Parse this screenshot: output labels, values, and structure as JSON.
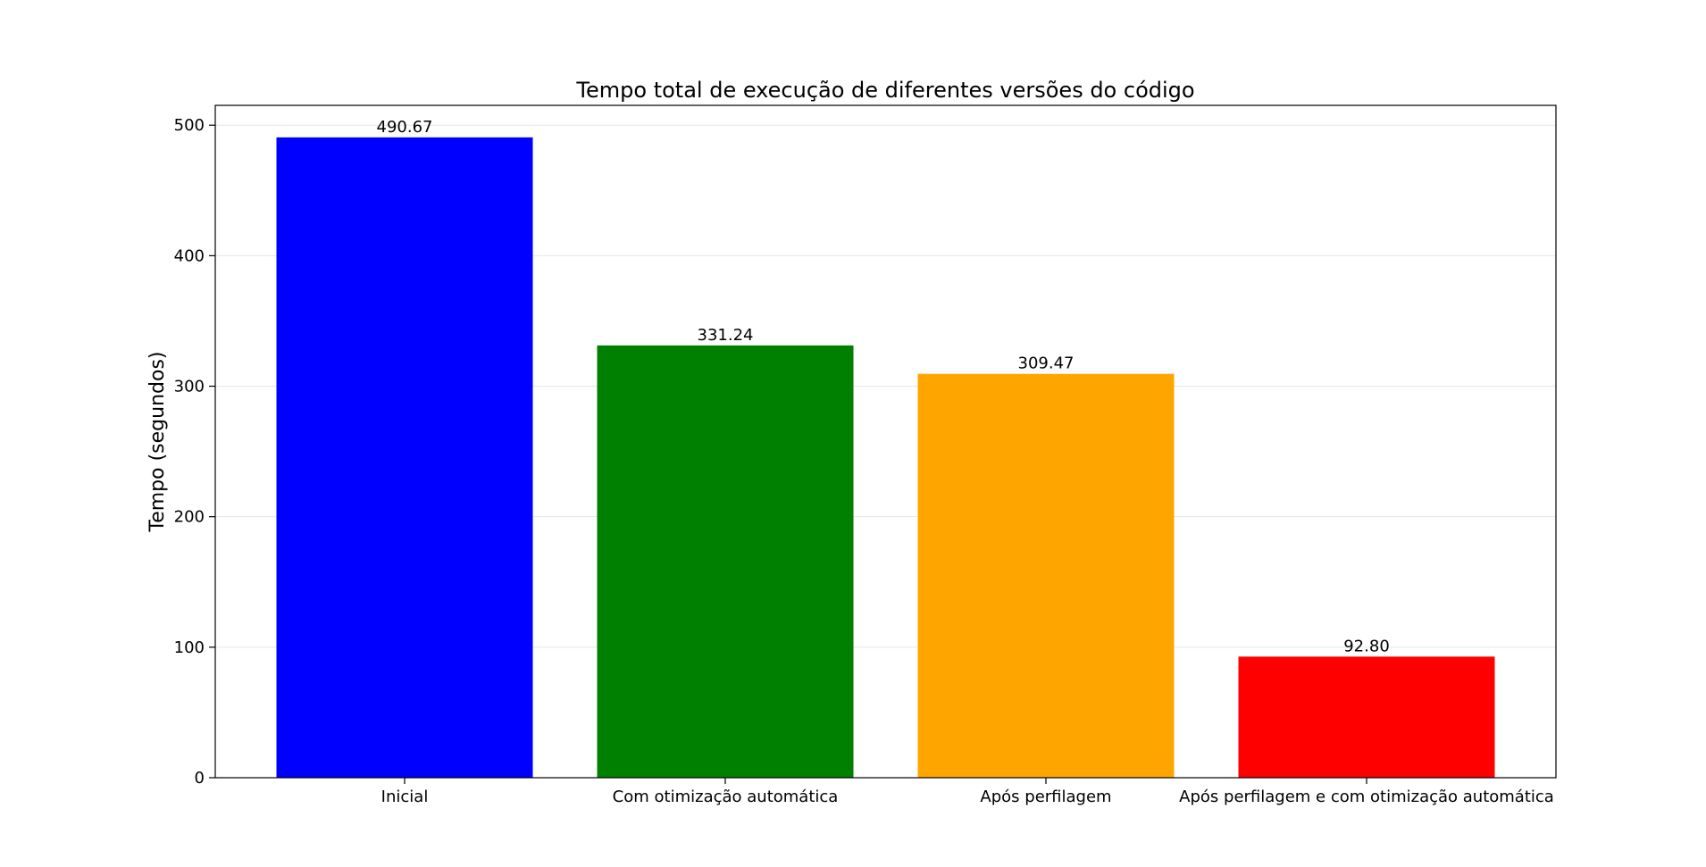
{
  "chart_data": {
    "type": "bar",
    "title": "Tempo total de execução de diferentes versões do código",
    "xlabel": "",
    "ylabel": "Tempo (segundos)",
    "categories": [
      "Inicial",
      "Com otimização automática",
      "Após perfilagem",
      "Após perfilagem e com otimização automática"
    ],
    "values": [
      490.67,
      331.24,
      309.47,
      92.8
    ],
    "value_labels": [
      "490.67",
      "331.24",
      "309.47",
      "92.80"
    ],
    "colors": [
      "#0000ff",
      "#008000",
      "#ffa500",
      "#ff0000"
    ],
    "ylim": [
      0,
      515.2
    ],
    "yticks": [
      0,
      100,
      200,
      300,
      400,
      500
    ],
    "grid": "y",
    "legend": "none"
  }
}
